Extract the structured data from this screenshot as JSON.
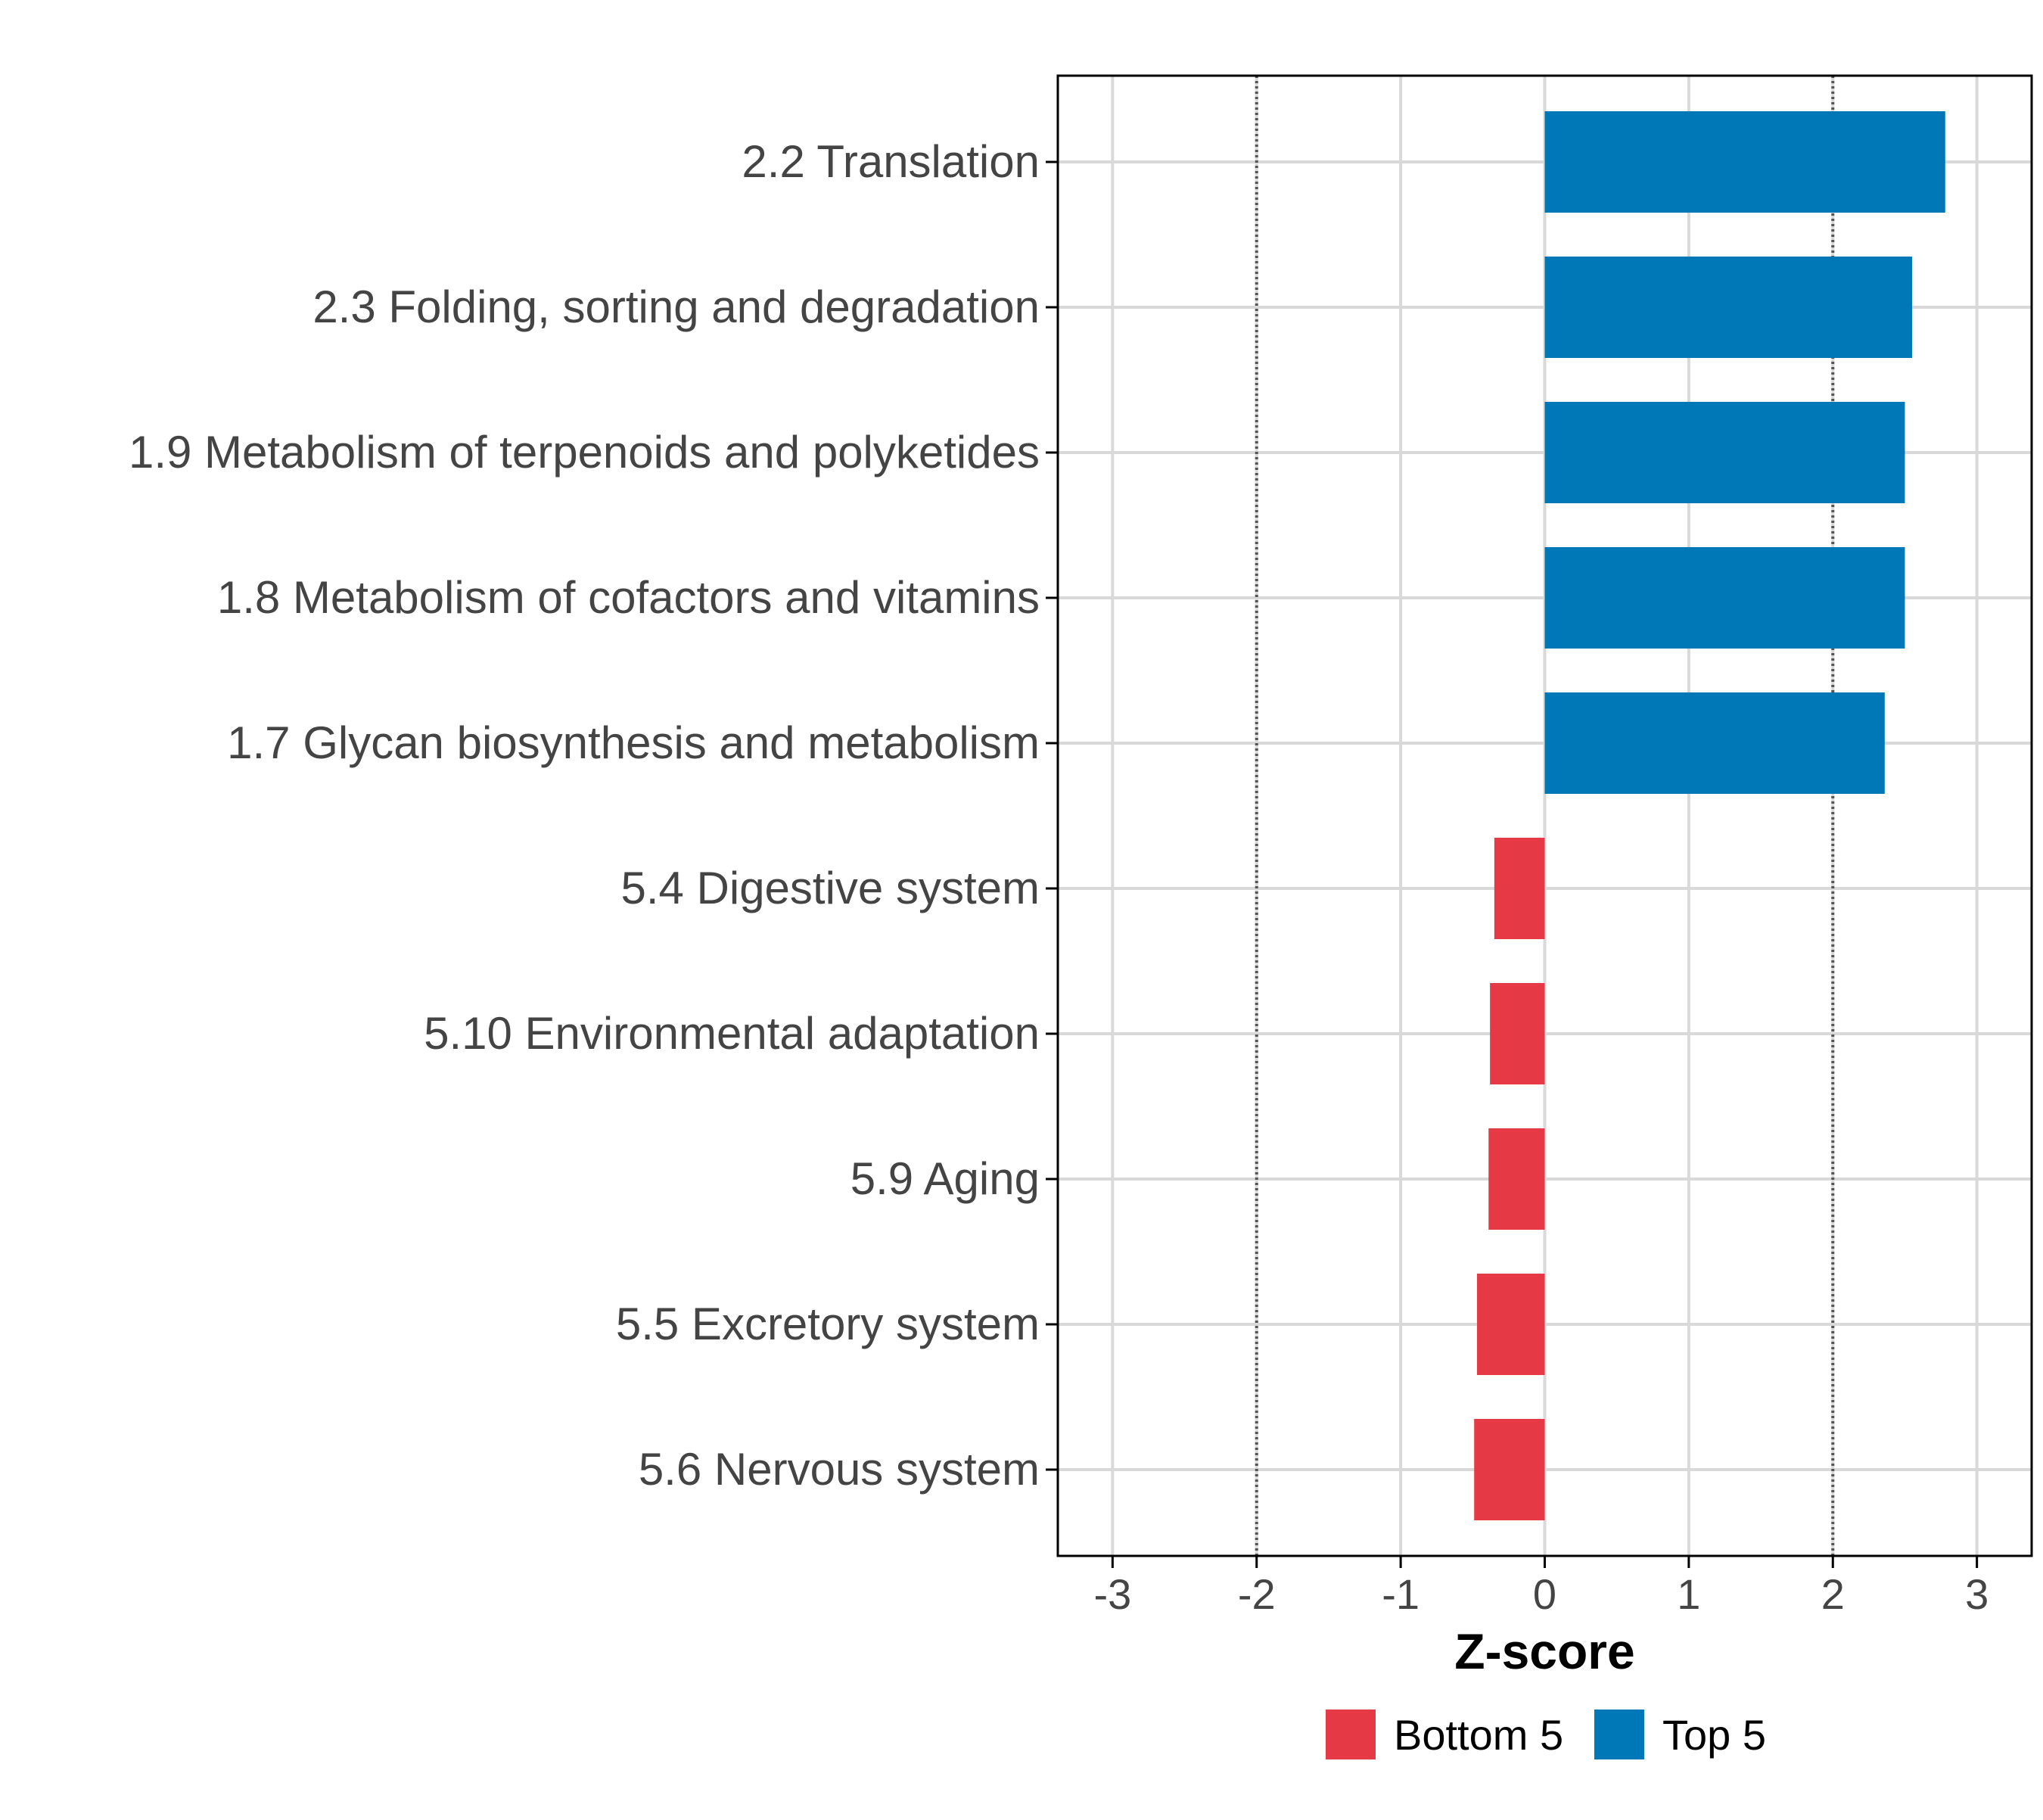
{
  "chart_data": {
    "type": "bar",
    "orientation": "horizontal",
    "title": "",
    "xlabel": "Z-score",
    "ylabel": "",
    "xlim": [
      -3.38,
      3.38
    ],
    "xticks": [
      -3,
      -2,
      -1,
      0,
      1,
      2,
      3
    ],
    "xtick_labels": [
      "-3",
      "-2",
      "-1",
      "0",
      "1",
      "2",
      "3"
    ],
    "reference_lines": [
      -2,
      2
    ],
    "grid": true,
    "legend_position": "bottom",
    "categories": [
      "2.2 Translation",
      "2.3 Folding, sorting and degradation",
      "1.9 Metabolism of terpenoids and polyketides",
      "1.8 Metabolism of cofactors and vitamins",
      "1.7 Glycan biosynthesis and metabolism",
      "5.4 Digestive system",
      "5.10 Environmental adaptation",
      "5.9 Aging",
      "5.5 Excretory system",
      "5.6 Nervous system"
    ],
    "values": [
      2.78,
      2.55,
      2.5,
      2.5,
      2.36,
      -0.35,
      -0.38,
      -0.39,
      -0.47,
      -0.49
    ],
    "groups": [
      "Top 5",
      "Top 5",
      "Top 5",
      "Top 5",
      "Top 5",
      "Bottom 5",
      "Bottom 5",
      "Bottom 5",
      "Bottom 5",
      "Bottom 5"
    ],
    "legend": [
      {
        "name": "Bottom 5",
        "color": "#e63946"
      },
      {
        "name": "Top 5",
        "color": "#0077b6"
      }
    ],
    "colors": {
      "Top 5": "#0077b6",
      "Bottom 5": "#e63946",
      "grid": "#d9d9d9",
      "axis": "#000000",
      "tick_label": "#444444",
      "reference_line": "#555555"
    }
  }
}
